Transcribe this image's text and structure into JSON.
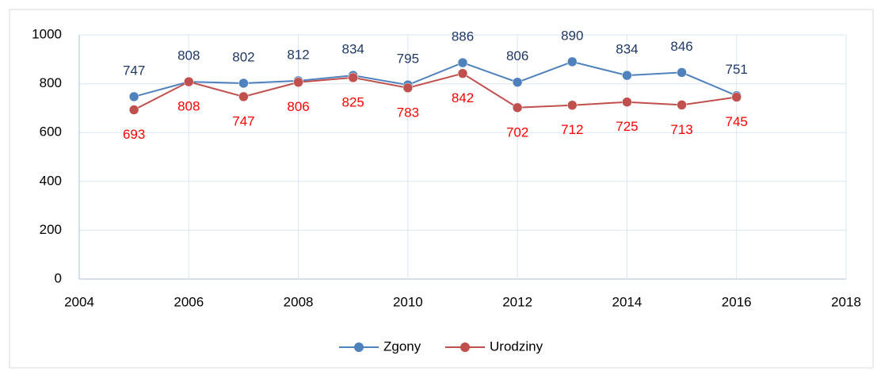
{
  "chart_data": {
    "type": "line",
    "x": [
      2005,
      2006,
      2007,
      2008,
      2009,
      2010,
      2011,
      2012,
      2013,
      2014,
      2015,
      2016
    ],
    "series": [
      {
        "name": "Zgony",
        "color": "#4f81bd",
        "label_color": "#1f3864",
        "values": [
          747,
          808,
          802,
          812,
          834,
          795,
          886,
          806,
          890,
          834,
          846,
          751
        ]
      },
      {
        "name": "Urodziny",
        "color": "#c0504d",
        "label_color": "#ff0000",
        "values": [
          693,
          808,
          747,
          806,
          825,
          783,
          842,
          702,
          712,
          725,
          713,
          745
        ]
      }
    ],
    "xlim": [
      2004,
      2018
    ],
    "xticks": [
      2004,
      2006,
      2008,
      2010,
      2012,
      2014,
      2016,
      2018
    ],
    "ylim": [
      0,
      1000
    ],
    "yticks": [
      0,
      200,
      400,
      600,
      800,
      1000
    ],
    "grid": true,
    "legend": "bottom"
  }
}
